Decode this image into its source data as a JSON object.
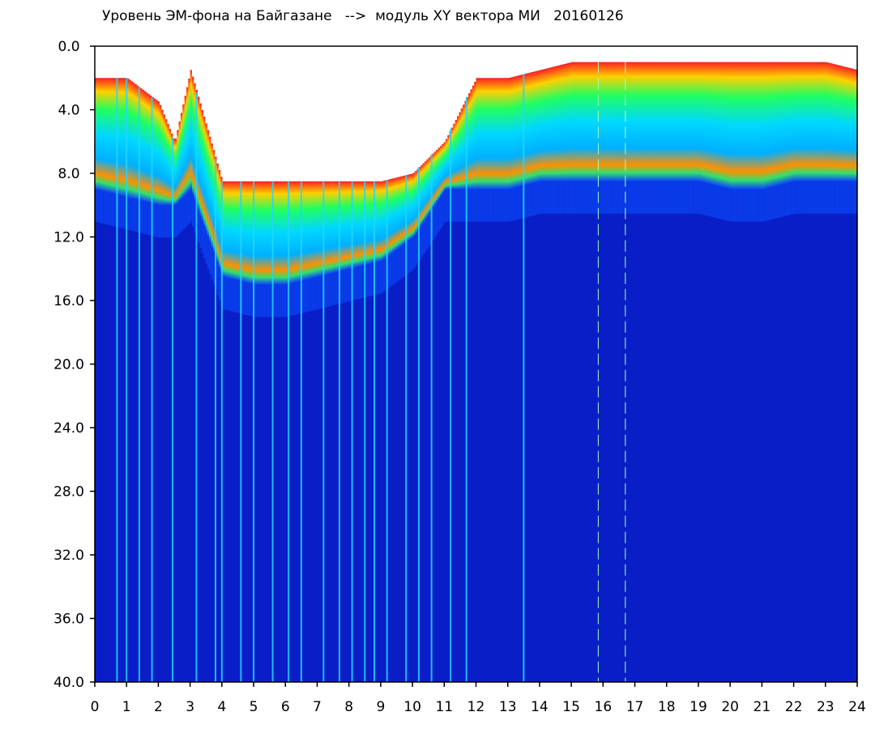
{
  "chart_data": {
    "type": "heatmap",
    "title": "Уровень ЭМ-фона на Байгазане   -->  модуль XY вектора МИ   20160126",
    "xlabel": "",
    "ylabel": "",
    "xlim": [
      0,
      24
    ],
    "ylim": [
      0.0,
      40.0
    ],
    "y_inverted": true,
    "x_ticks": [
      "0",
      "1",
      "2",
      "3",
      "4",
      "5",
      "6",
      "7",
      "8",
      "9",
      "10",
      "11",
      "12",
      "13",
      "14",
      "15",
      "16",
      "17",
      "18",
      "19",
      "20",
      "21",
      "22",
      "23",
      "24"
    ],
    "y_ticks": [
      "0.0",
      "4.0",
      "8.0",
      "12.0",
      "16.0",
      "20.0",
      "24.0",
      "28.0",
      "32.0",
      "36.0",
      "40.0"
    ],
    "colormap": [
      "#0000c8",
      "#0050ff",
      "#00c8ff",
      "#00ff80",
      "#ffff00",
      "#ff8000",
      "#ff0000"
    ],
    "grid": false,
    "profile_hours": [
      0,
      1,
      2,
      2.5,
      3,
      4,
      5,
      6,
      7,
      8,
      9,
      10,
      11,
      12,
      13,
      14,
      15,
      16,
      17,
      18,
      19,
      20,
      21,
      22,
      23,
      24
    ],
    "upper_edge": [
      2.0,
      2.0,
      3.5,
      6.0,
      1.5,
      8.5,
      8.5,
      8.5,
      8.5,
      8.5,
      8.5,
      8.0,
      6.0,
      2.0,
      2.0,
      1.5,
      1.0,
      1.0,
      1.0,
      1.0,
      1.0,
      1.0,
      1.0,
      1.0,
      1.0,
      1.5
    ],
    "lower_edge": [
      9.0,
      9.5,
      10.0,
      10.0,
      9.0,
      14.5,
      15.0,
      15.0,
      14.5,
      14.0,
      13.5,
      12.0,
      9.0,
      9.0,
      9.0,
      8.5,
      8.5,
      8.5,
      8.5,
      8.5,
      8.5,
      9.0,
      9.0,
      8.5,
      8.5,
      8.5
    ],
    "spikes_hours": [
      0.7,
      1.0,
      1.4,
      1.8,
      2.45,
      3.2,
      3.8,
      4.0,
      4.6,
      5.0,
      5.6,
      6.1,
      6.5,
      7.2,
      7.7,
      8.1,
      8.5,
      8.8,
      9.2,
      9.8,
      10.2,
      10.6,
      11.2,
      11.7,
      13.5,
      15.85,
      16.7
    ]
  }
}
